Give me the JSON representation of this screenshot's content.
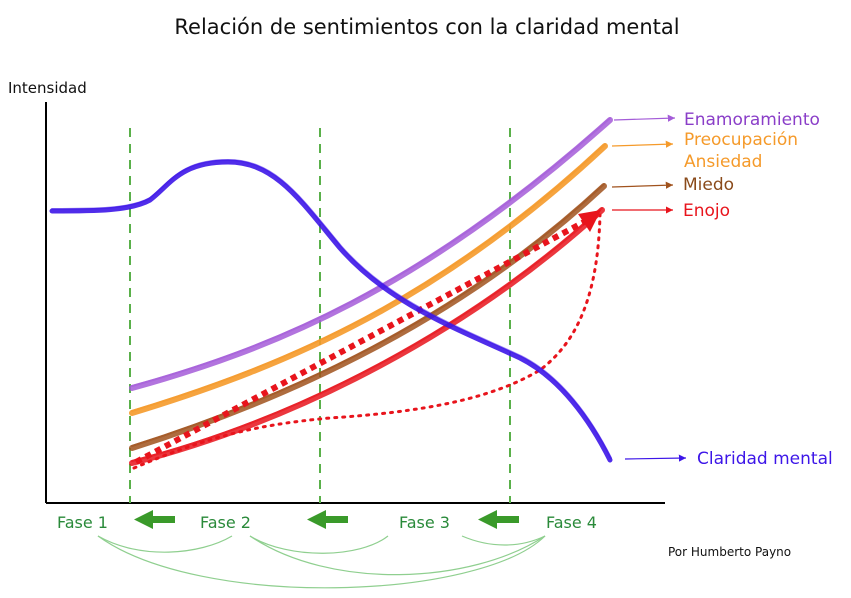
{
  "title": "Relación de sentimientos con la claridad mental",
  "y_axis_label": "Intensidad",
  "credit": "Por Humberto Payno",
  "phases": [
    "Fase 1",
    "Fase 2",
    "Fase 3",
    "Fase 4"
  ],
  "legend": {
    "enamoramiento": "Enamoramiento",
    "preocupacion": "Preocupación",
    "ansiedad": "Ansiedad",
    "miedo": "Miedo",
    "enojo": "Enojo",
    "claridad": "Claridad mental"
  },
  "colors": {
    "enamoramiento": "#a45cd8",
    "preocupacion": "#f59a2a",
    "miedo": "#a0521d",
    "enojo": "#e8141c",
    "claridad": "#3d16e8",
    "phase_line": "#5ab04a",
    "phase_text": "#2a8a3a",
    "back_arrow": "#3a9a2a",
    "phase_arc": "#8fcf8f",
    "axis": "#000000"
  }
}
